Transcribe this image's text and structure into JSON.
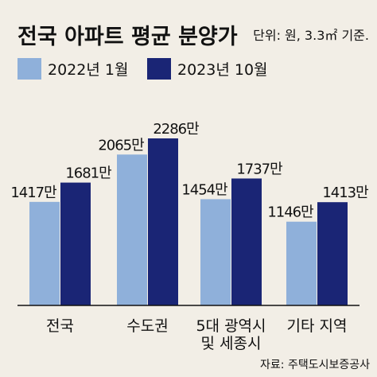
{
  "chart_data": {
    "type": "bar",
    "title": "전국 아파트 평균 분양가",
    "unit_note": "단위: 원, 3.3㎡ 기준.",
    "source": "자료: 주택도시보증공사",
    "categories": [
      [
        "전국"
      ],
      [
        "수도권"
      ],
      [
        "5대 광역시",
        "및 세종시"
      ],
      [
        "기타 지역"
      ]
    ],
    "series": [
      {
        "name": "2022년 1월",
        "color": "#8fb0da",
        "values": [
          14170000,
          20650000,
          14540000,
          11460000
        ],
        "labels": [
          "1417만",
          "2065만",
          "1454만",
          "1146만"
        ]
      },
      {
        "name": "2023년 10월",
        "color": "#1a2575",
        "values": [
          16810000,
          22860000,
          17370000,
          14130000
        ],
        "labels": [
          "1681만",
          "2286만",
          "1737만",
          "1413만"
        ]
      }
    ]
  }
}
